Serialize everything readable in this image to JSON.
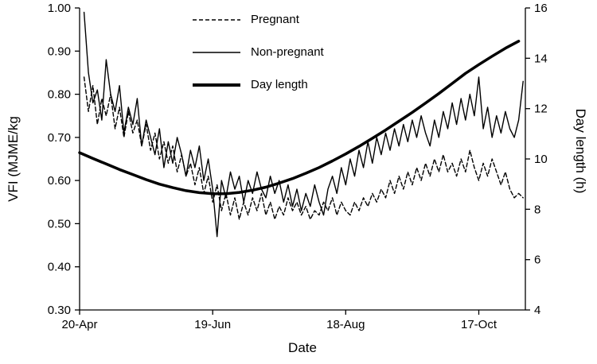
{
  "chart_data": {
    "type": "line",
    "xlabel": "Date",
    "grid": false,
    "legend_position": "top-center-inside",
    "x_range_days": [
      0,
      201
    ],
    "x_ticks": [
      {
        "label": "20-Apr",
        "day": 0
      },
      {
        "label": "19-Jun",
        "day": 60
      },
      {
        "label": "18-Aug",
        "day": 120
      },
      {
        "label": "17-Oct",
        "day": 180
      }
    ],
    "y_left": {
      "label": "VFI (MJME/kg",
      "min": 0.3,
      "max": 1.0,
      "ticks": [
        {
          "label": "1.00",
          "value": 1.0
        },
        {
          "label": "0.90",
          "value": 0.9
        },
        {
          "label": "0.80",
          "value": 0.8
        },
        {
          "label": "0.70",
          "value": 0.7
        },
        {
          "label": "0.60",
          "value": 0.6
        },
        {
          "label": "0.50",
          "value": 0.5
        },
        {
          "label": "0.40",
          "value": 0.4
        },
        {
          "label": "0.30",
          "value": 0.3
        }
      ]
    },
    "y_right": {
      "label": "Day length (h)",
      "min": 4,
      "max": 16,
      "ticks": [
        {
          "label": "16",
          "value": 16
        },
        {
          "label": "14",
          "value": 14
        },
        {
          "label": "12",
          "value": 12
        },
        {
          "label": "10",
          "value": 10
        },
        {
          "label": "8",
          "value": 8
        },
        {
          "label": "6",
          "value": 6
        },
        {
          "label": "4",
          "value": 4
        }
      ]
    },
    "legend_entries": [
      {
        "label": "Pregnant",
        "line": "dashed"
      },
      {
        "label": "Non-pregnant",
        "line": "thin-solid"
      },
      {
        "label": "Day length",
        "line": "thick-solid"
      }
    ],
    "series": [
      {
        "name": "Pregnant",
        "axis": "left",
        "style": "dashed",
        "x_start": 2,
        "x_step": 2,
        "values": [
          0.84,
          0.76,
          0.82,
          0.73,
          0.79,
          0.75,
          0.8,
          0.72,
          0.77,
          0.7,
          0.76,
          0.71,
          0.74,
          0.68,
          0.73,
          0.67,
          0.71,
          0.65,
          0.69,
          0.64,
          0.68,
          0.62,
          0.66,
          0.61,
          0.64,
          0.59,
          0.63,
          0.57,
          0.61,
          0.55,
          0.59,
          0.53,
          0.57,
          0.52,
          0.56,
          0.51,
          0.55,
          0.52,
          0.56,
          0.53,
          0.57,
          0.52,
          0.55,
          0.51,
          0.54,
          0.52,
          0.56,
          0.53,
          0.55,
          0.52,
          0.54,
          0.51,
          0.53,
          0.52,
          0.55,
          0.53,
          0.56,
          0.52,
          0.55,
          0.53,
          0.52,
          0.55,
          0.53,
          0.56,
          0.54,
          0.57,
          0.55,
          0.58,
          0.56,
          0.6,
          0.57,
          0.61,
          0.58,
          0.62,
          0.59,
          0.63,
          0.6,
          0.64,
          0.61,
          0.65,
          0.62,
          0.66,
          0.62,
          0.64,
          0.61,
          0.65,
          0.62,
          0.67,
          0.63,
          0.6,
          0.64,
          0.61,
          0.65,
          0.62,
          0.59,
          0.62,
          0.58,
          0.56,
          0.57,
          0.56
        ]
      },
      {
        "name": "Non-pregnant",
        "axis": "left",
        "style": "solid",
        "x_start": 2,
        "x_step": 2,
        "values": [
          0.99,
          0.85,
          0.78,
          0.81,
          0.74,
          0.88,
          0.8,
          0.76,
          0.82,
          0.71,
          0.77,
          0.73,
          0.79,
          0.68,
          0.74,
          0.7,
          0.66,
          0.72,
          0.63,
          0.69,
          0.64,
          0.7,
          0.66,
          0.61,
          0.67,
          0.63,
          0.68,
          0.6,
          0.65,
          0.58,
          0.47,
          0.6,
          0.56,
          0.62,
          0.58,
          0.61,
          0.55,
          0.6,
          0.57,
          0.62,
          0.58,
          0.56,
          0.61,
          0.57,
          0.6,
          0.55,
          0.59,
          0.54,
          0.58,
          0.53,
          0.57,
          0.54,
          0.59,
          0.55,
          0.52,
          0.58,
          0.61,
          0.57,
          0.63,
          0.59,
          0.65,
          0.61,
          0.67,
          0.63,
          0.69,
          0.64,
          0.7,
          0.66,
          0.71,
          0.67,
          0.72,
          0.68,
          0.73,
          0.69,
          0.74,
          0.7,
          0.75,
          0.71,
          0.68,
          0.74,
          0.7,
          0.76,
          0.72,
          0.78,
          0.73,
          0.79,
          0.74,
          0.8,
          0.75,
          0.84,
          0.72,
          0.77,
          0.7,
          0.75,
          0.71,
          0.76,
          0.72,
          0.7,
          0.74,
          0.83
        ]
      },
      {
        "name": "Day length",
        "axis": "right",
        "style": "thick",
        "x_start": 0,
        "x_step": 6,
        "values": [
          10.25,
          10.02,
          9.8,
          9.58,
          9.38,
          9.18,
          9.0,
          8.86,
          8.74,
          8.66,
          8.62,
          8.62,
          8.67,
          8.76,
          8.88,
          9.04,
          9.22,
          9.43,
          9.66,
          9.92,
          10.2,
          10.5,
          10.82,
          11.15,
          11.5,
          11.85,
          12.22,
          12.6,
          13.0,
          13.4,
          13.75,
          14.08,
          14.4,
          14.68
        ]
      }
    ],
    "line_color": "#000000",
    "background_color": "#ffffff"
  }
}
